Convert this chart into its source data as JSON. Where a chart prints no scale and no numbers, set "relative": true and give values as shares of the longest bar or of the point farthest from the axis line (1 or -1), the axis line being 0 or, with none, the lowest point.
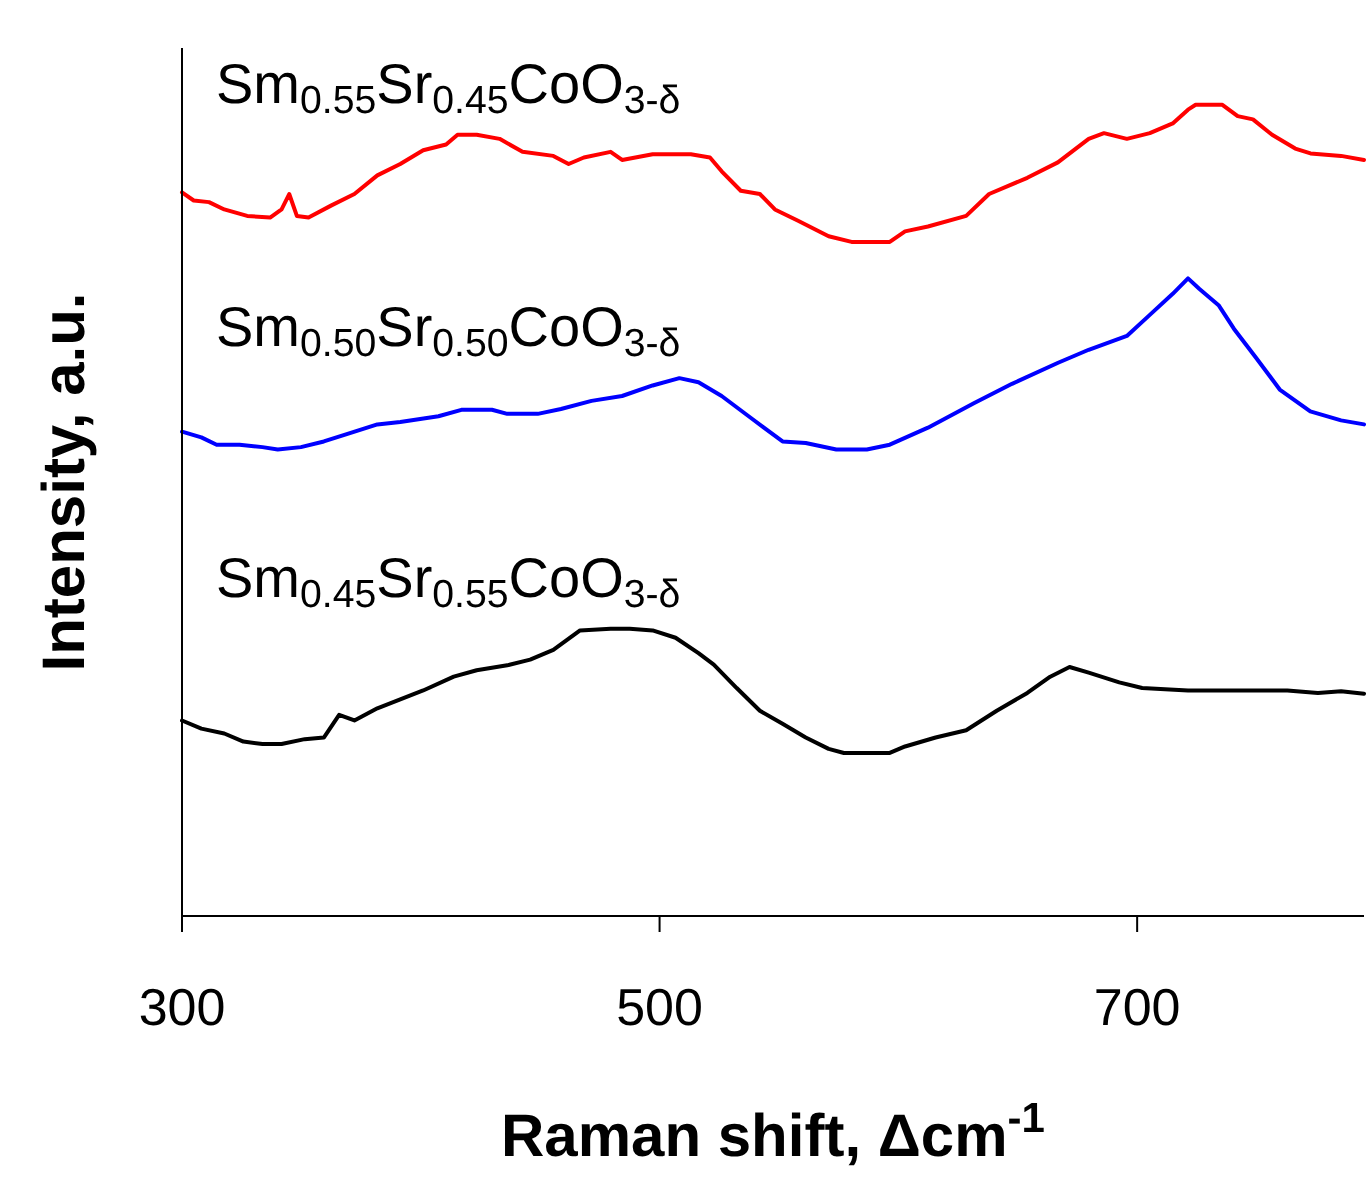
{
  "chart_data": {
    "type": "line",
    "relative": true,
    "xlabel": "Raman shift, Δcm$^{-1}$",
    "ylabel": "Intensity, a.u.",
    "xlim": [
      300,
      795
    ],
    "xticks": [
      300,
      500,
      700
    ],
    "series": [
      {
        "name": "Sm$_{0.55}$Sr$_{0.45}$CoO$_{3-δ}$",
        "color": "#ff0000",
        "x": [
          300,
          304.9,
          311.3,
          317.7,
          327.3,
          336.9,
          341.7,
          344.9,
          348.1,
          353,
          362.6,
          372.2,
          381.8,
          391.4,
          401,
          410.6,
          415.4,
          423.4,
          433,
          442.6,
          455.5,
          461.9,
          468.3,
          479.5,
          484.3,
          497.1,
          513.1,
          521.1,
          526,
          534,
          542,
          548.3,
          558,
          570.8,
          580.4,
          596.4,
          602.8,
          612.4,
          628.4,
          638,
          654,
          666.8,
          679.7,
          686.1,
          695.7,
          705.3,
          714.9,
          721.3,
          724.5,
          735.7,
          742.1,
          748.5,
          756.5,
          766.2,
          772.6,
          785.4,
          795
        ],
        "values": [
          0.892,
          0.882,
          0.88,
          0.871,
          0.863,
          0.861,
          0.871,
          0.89,
          0.863,
          0.861,
          0.876,
          0.89,
          0.913,
          0.927,
          0.944,
          0.951,
          0.963,
          0.963,
          0.958,
          0.942,
          0.937,
          0.927,
          0.935,
          0.942,
          0.932,
          0.939,
          0.939,
          0.935,
          0.918,
          0.894,
          0.89,
          0.871,
          0.857,
          0.838,
          0.831,
          0.831,
          0.844,
          0.85,
          0.863,
          0.89,
          0.91,
          0.929,
          0.958,
          0.965,
          0.958,
          0.965,
          0.977,
          0.994,
          1,
          1,
          0.986,
          0.982,
          0.963,
          0.946,
          0.94,
          0.937,
          0.932
        ]
      },
      {
        "name": "Sm$_{0.50}$Sr$_{0.50}$CoO$_{3-δ}$",
        "color": "#0000ff",
        "x": [
          300,
          308.1,
          314.5,
          324.1,
          333.7,
          340.1,
          349.8,
          359.4,
          369,
          381.8,
          391.4,
          407.4,
          417,
          429.8,
          436.2,
          449,
          458.7,
          471.5,
          484.3,
          497.1,
          508.3,
          516.3,
          526,
          538.7,
          551.5,
          561.2,
          574,
          586.8,
          596.4,
          612.4,
          631.6,
          647.6,
          666.9,
          679.7,
          695.7,
          705.3,
          714.9,
          721.3,
          726.1,
          734.1,
          740.5,
          750.1,
          759.7,
          772.5,
          785.4,
          795
        ],
        "values": [
          0.597,
          0.59,
          0.581,
          0.581,
          0.578,
          0.575,
          0.578,
          0.585,
          0.594,
          0.606,
          0.609,
          0.616,
          0.624,
          0.624,
          0.619,
          0.619,
          0.625,
          0.635,
          0.641,
          0.654,
          0.663,
          0.658,
          0.641,
          0.613,
          0.585,
          0.583,
          0.575,
          0.575,
          0.581,
          0.602,
          0.632,
          0.656,
          0.682,
          0.698,
          0.715,
          0.741,
          0.767,
          0.786,
          0.773,
          0.753,
          0.724,
          0.687,
          0.649,
          0.622,
          0.611,
          0.606
        ]
      },
      {
        "name": "Sm$_{0.45}$Sr$_{0.55}$CoO$_{3-δ}$",
        "color": "#000000",
        "x": [
          300,
          308.1,
          317.7,
          325.7,
          333.7,
          341.7,
          351.4,
          359.4,
          365.8,
          372.2,
          381.8,
          391.4,
          401,
          413.8,
          423.4,
          436.2,
          445.8,
          455.5,
          466.7,
          479.5,
          487.5,
          497.1,
          506.7,
          516.3,
          522.7,
          532.3,
          542,
          551.5,
          561.2,
          570.8,
          577.2,
          596.4,
          602.8,
          615.6,
          628.4,
          641.2,
          654,
          663.6,
          671.7,
          679.7,
          692.5,
          702.1,
          721.3,
          743.7,
          762.9,
          775.7,
          785.4,
          795
        ],
        "values": [
          0.241,
          0.231,
          0.225,
          0.215,
          0.212,
          0.212,
          0.218,
          0.22,
          0.248,
          0.241,
          0.256,
          0.267,
          0.278,
          0.295,
          0.303,
          0.309,
          0.316,
          0.328,
          0.352,
          0.354,
          0.354,
          0.352,
          0.343,
          0.324,
          0.31,
          0.281,
          0.253,
          0.237,
          0.22,
          0.206,
          0.201,
          0.201,
          0.209,
          0.22,
          0.229,
          0.253,
          0.275,
          0.295,
          0.307,
          0.3,
          0.288,
          0.281,
          0.278,
          0.278,
          0.278,
          0.275,
          0.277,
          0.274
        ]
      }
    ]
  }
}
